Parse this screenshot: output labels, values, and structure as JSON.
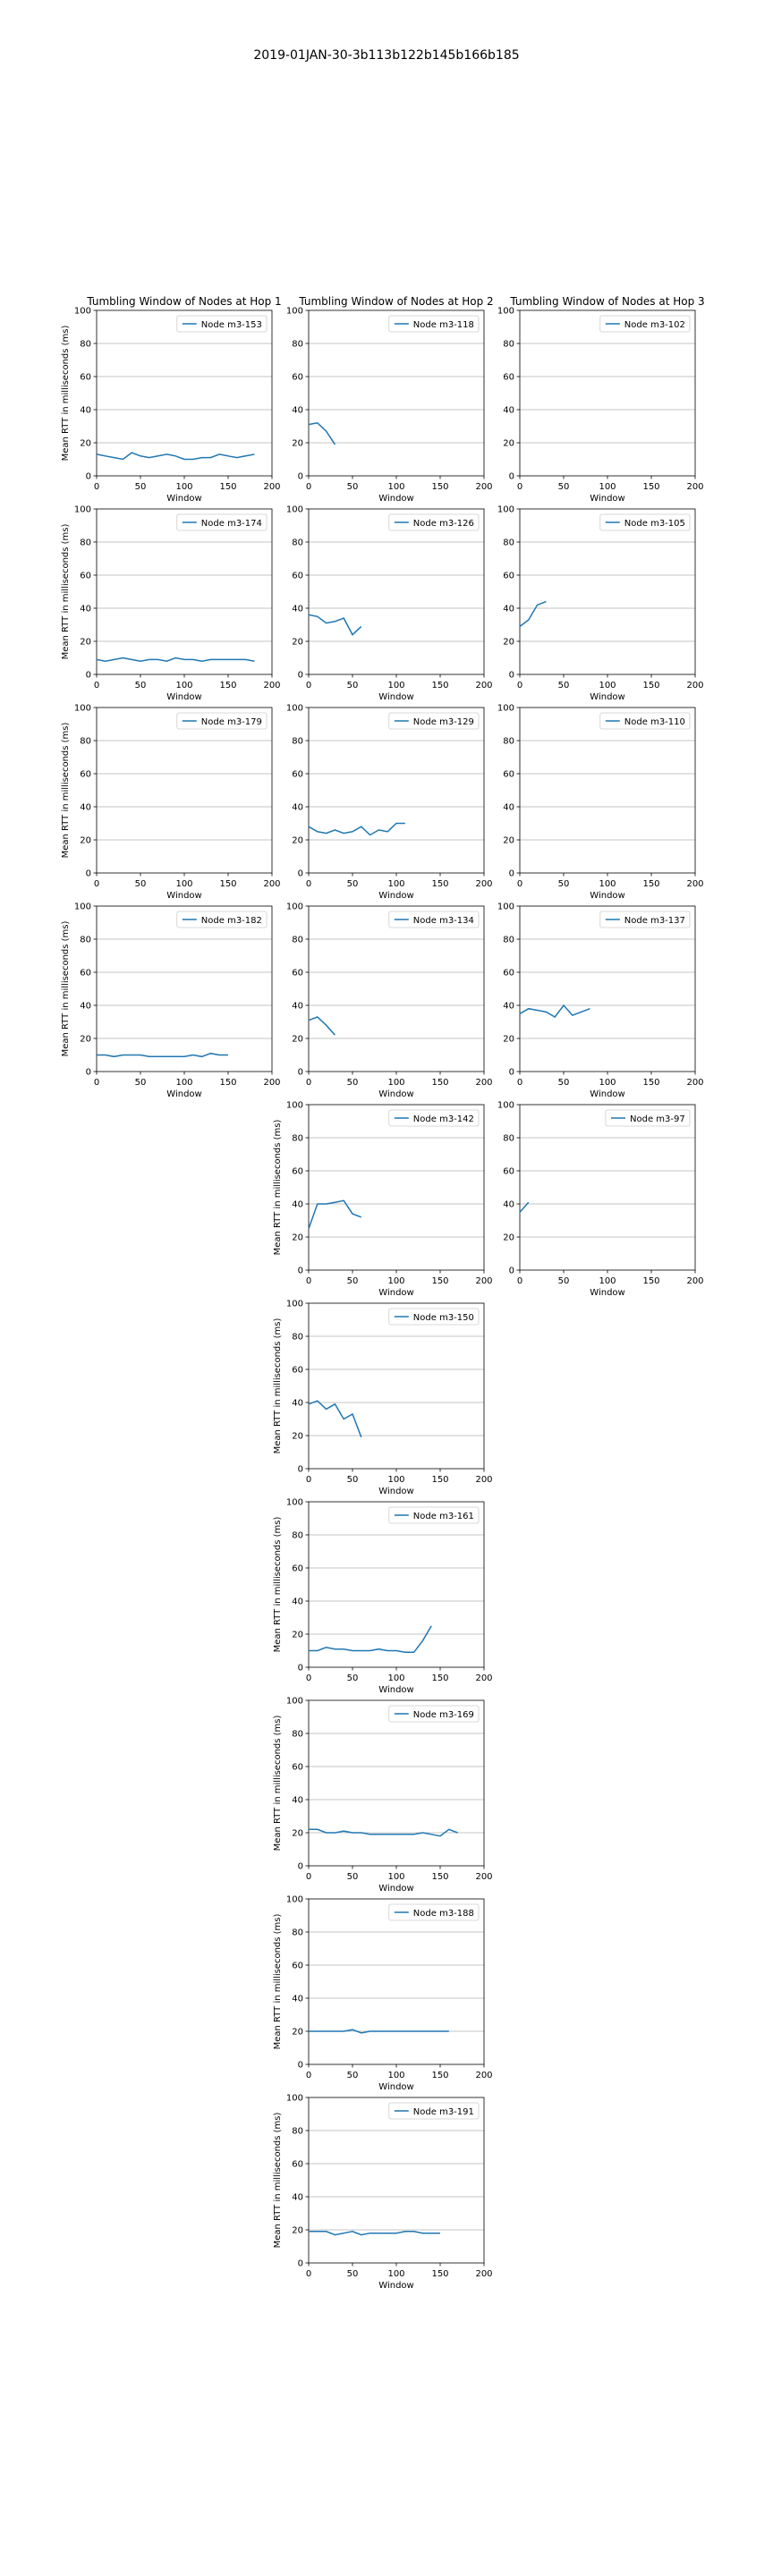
{
  "figure_title": "2019-01JAN-30-3b113b122b145b166b185",
  "column_titles": [
    "Tumbling Window of Nodes at Hop 1",
    "Tumbling Window of Nodes at Hop 2",
    "Tumbling Window of Nodes at Hop 3"
  ],
  "axes_text": {
    "xlabel": "Window",
    "ylabel": "Mean RTT in milliseconds (ms)",
    "x_ticks": [
      "0",
      "50",
      "100",
      "150",
      "200"
    ],
    "y_ticks": [
      "0",
      "20",
      "40",
      "60",
      "80",
      "100"
    ]
  },
  "colors": {
    "series": "#1f77b4",
    "grid": "#b0b0b0",
    "axes": "#000000"
  },
  "chart_data": [
    {
      "type": "line",
      "col": 0,
      "row": 0,
      "series": [
        {
          "name": "Node m3-153",
          "x": [
            0,
            10,
            20,
            30,
            40,
            50,
            60,
            70,
            80,
            90,
            100,
            110,
            120,
            130,
            140,
            150,
            160,
            170,
            180
          ],
          "y": [
            13,
            12,
            11,
            10,
            14,
            12,
            11,
            12,
            13,
            12,
            10,
            10,
            11,
            11,
            13,
            12,
            11,
            12,
            13
          ]
        }
      ],
      "xlim": [
        0,
        200
      ],
      "ylim": [
        0,
        100
      ],
      "grid": "y"
    },
    {
      "type": "line",
      "col": 1,
      "row": 0,
      "series": [
        {
          "name": "Node m3-118",
          "x": [
            0,
            10,
            20,
            30
          ],
          "y": [
            31,
            32,
            27,
            19
          ]
        }
      ],
      "xlim": [
        0,
        200
      ],
      "ylim": [
        0,
        100
      ],
      "grid": "y"
    },
    {
      "type": "line",
      "col": 2,
      "row": 0,
      "series": [
        {
          "name": "Node m3-102",
          "x": [],
          "y": []
        }
      ],
      "xlim": [
        0,
        200
      ],
      "ylim": [
        0,
        100
      ],
      "grid": "y"
    },
    {
      "type": "line",
      "col": 0,
      "row": 1,
      "series": [
        {
          "name": "Node m3-174",
          "x": [
            0,
            10,
            20,
            30,
            40,
            50,
            60,
            70,
            80,
            90,
            100,
            110,
            120,
            130,
            140,
            150,
            160,
            170,
            180
          ],
          "y": [
            9,
            8,
            9,
            10,
            9,
            8,
            9,
            9,
            8,
            10,
            9,
            9,
            8,
            9,
            9,
            9,
            9,
            9,
            8
          ]
        }
      ],
      "xlim": [
        0,
        200
      ],
      "ylim": [
        0,
        100
      ],
      "grid": "y"
    },
    {
      "type": "line",
      "col": 1,
      "row": 1,
      "series": [
        {
          "name": "Node m3-126",
          "x": [
            0,
            10,
            20,
            30,
            40,
            50,
            60
          ],
          "y": [
            36,
            35,
            31,
            32,
            34,
            24,
            29
          ]
        }
      ],
      "xlim": [
        0,
        200
      ],
      "ylim": [
        0,
        100
      ],
      "grid": "y"
    },
    {
      "type": "line",
      "col": 2,
      "row": 1,
      "series": [
        {
          "name": "Node m3-105",
          "x": [
            0,
            10,
            20,
            30
          ],
          "y": [
            29,
            33,
            42,
            44
          ]
        }
      ],
      "xlim": [
        0,
        200
      ],
      "ylim": [
        0,
        100
      ],
      "grid": "y"
    },
    {
      "type": "line",
      "col": 0,
      "row": 2,
      "series": [
        {
          "name": "Node m3-179",
          "x": [],
          "y": []
        }
      ],
      "xlim": [
        0,
        200
      ],
      "ylim": [
        0,
        100
      ],
      "grid": "y"
    },
    {
      "type": "line",
      "col": 1,
      "row": 2,
      "series": [
        {
          "name": "Node m3-129",
          "x": [
            0,
            10,
            20,
            30,
            40,
            50,
            60,
            70,
            80,
            90,
            100,
            110
          ],
          "y": [
            28,
            25,
            24,
            26,
            24,
            25,
            28,
            23,
            26,
            25,
            30,
            30
          ]
        }
      ],
      "xlim": [
        0,
        200
      ],
      "ylim": [
        0,
        100
      ],
      "grid": "y"
    },
    {
      "type": "line",
      "col": 2,
      "row": 2,
      "series": [
        {
          "name": "Node m3-110",
          "x": [],
          "y": []
        }
      ],
      "xlim": [
        0,
        200
      ],
      "ylim": [
        0,
        100
      ],
      "grid": "y"
    },
    {
      "type": "line",
      "col": 0,
      "row": 3,
      "series": [
        {
          "name": "Node m3-182",
          "x": [
            0,
            10,
            20,
            30,
            40,
            50,
            60,
            70,
            80,
            90,
            100,
            110,
            120,
            130,
            140,
            150
          ],
          "y": [
            10,
            10,
            9,
            10,
            10,
            10,
            9,
            9,
            9,
            9,
            9,
            10,
            9,
            11,
            10,
            10
          ]
        }
      ],
      "xlim": [
        0,
        200
      ],
      "ylim": [
        0,
        100
      ],
      "grid": "y"
    },
    {
      "type": "line",
      "col": 1,
      "row": 3,
      "series": [
        {
          "name": "Node m3-134",
          "x": [
            0,
            10,
            20,
            30
          ],
          "y": [
            31,
            33,
            28,
            22
          ]
        }
      ],
      "xlim": [
        0,
        200
      ],
      "ylim": [
        0,
        100
      ],
      "grid": "y"
    },
    {
      "type": "line",
      "col": 2,
      "row": 3,
      "series": [
        {
          "name": "Node m3-137",
          "x": [
            0,
            10,
            20,
            30,
            40,
            50,
            60,
            70,
            80
          ],
          "y": [
            35,
            38,
            37,
            36,
            33,
            40,
            34,
            36,
            38
          ]
        }
      ],
      "xlim": [
        0,
        200
      ],
      "ylim": [
        0,
        100
      ],
      "grid": "y"
    },
    {
      "type": "line",
      "col": 1,
      "row": 4,
      "series": [
        {
          "name": "Node m3-142",
          "x": [
            0,
            10,
            20,
            30,
            40,
            50,
            60
          ],
          "y": [
            25,
            40,
            40,
            41,
            42,
            34,
            32
          ]
        }
      ],
      "xlim": [
        0,
        200
      ],
      "ylim": [
        0,
        100
      ],
      "grid": "y"
    },
    {
      "type": "line",
      "col": 2,
      "row": 4,
      "series": [
        {
          "name": "Node m3-97",
          "x": [
            0,
            10
          ],
          "y": [
            35,
            41
          ]
        }
      ],
      "xlim": [
        0,
        200
      ],
      "ylim": [
        0,
        100
      ],
      "grid": "y"
    },
    {
      "type": "line",
      "col": 1,
      "row": 5,
      "series": [
        {
          "name": "Node m3-150",
          "x": [
            0,
            10,
            20,
            30,
            40,
            50,
            60
          ],
          "y": [
            39,
            41,
            36,
            39,
            30,
            33,
            19
          ]
        }
      ],
      "xlim": [
        0,
        200
      ],
      "ylim": [
        0,
        100
      ],
      "grid": "y"
    },
    {
      "type": "line",
      "col": 1,
      "row": 6,
      "series": [
        {
          "name": "Node m3-161",
          "x": [
            0,
            10,
            20,
            30,
            40,
            50,
            60,
            70,
            80,
            90,
            100,
            110,
            120,
            130,
            140
          ],
          "y": [
            10,
            10,
            12,
            11,
            11,
            10,
            10,
            10,
            11,
            10,
            10,
            9,
            9,
            16,
            25
          ]
        }
      ],
      "xlim": [
        0,
        200
      ],
      "ylim": [
        0,
        100
      ],
      "grid": "y"
    },
    {
      "type": "line",
      "col": 1,
      "row": 7,
      "series": [
        {
          "name": "Node m3-169",
          "x": [
            0,
            10,
            20,
            30,
            40,
            50,
            60,
            70,
            80,
            90,
            100,
            110,
            120,
            130,
            140,
            150,
            160,
            170
          ],
          "y": [
            22,
            22,
            20,
            20,
            21,
            20,
            20,
            19,
            19,
            19,
            19,
            19,
            19,
            20,
            19,
            18,
            22,
            20
          ]
        }
      ],
      "xlim": [
        0,
        200
      ],
      "ylim": [
        0,
        100
      ],
      "grid": "y"
    },
    {
      "type": "line",
      "col": 1,
      "row": 8,
      "series": [
        {
          "name": "Node m3-188",
          "x": [
            0,
            10,
            20,
            30,
            40,
            50,
            60,
            70,
            80,
            90,
            100,
            110,
            120,
            130,
            140,
            150,
            160
          ],
          "y": [
            20,
            20,
            20,
            20,
            20,
            21,
            19,
            20,
            20,
            20,
            20,
            20,
            20,
            20,
            20,
            20,
            20
          ]
        }
      ],
      "xlim": [
        0,
        200
      ],
      "ylim": [
        0,
        100
      ],
      "grid": "y"
    },
    {
      "type": "line",
      "col": 1,
      "row": 9,
      "series": [
        {
          "name": "Node m3-191",
          "x": [
            0,
            10,
            20,
            30,
            40,
            50,
            60,
            70,
            80,
            90,
            100,
            110,
            120,
            130,
            140,
            150
          ],
          "y": [
            19,
            19,
            19,
            17,
            18,
            19,
            17,
            18,
            18,
            18,
            18,
            19,
            19,
            18,
            18,
            18
          ]
        }
      ],
      "xlim": [
        0,
        200
      ],
      "ylim": [
        0,
        100
      ],
      "grid": "y"
    }
  ]
}
